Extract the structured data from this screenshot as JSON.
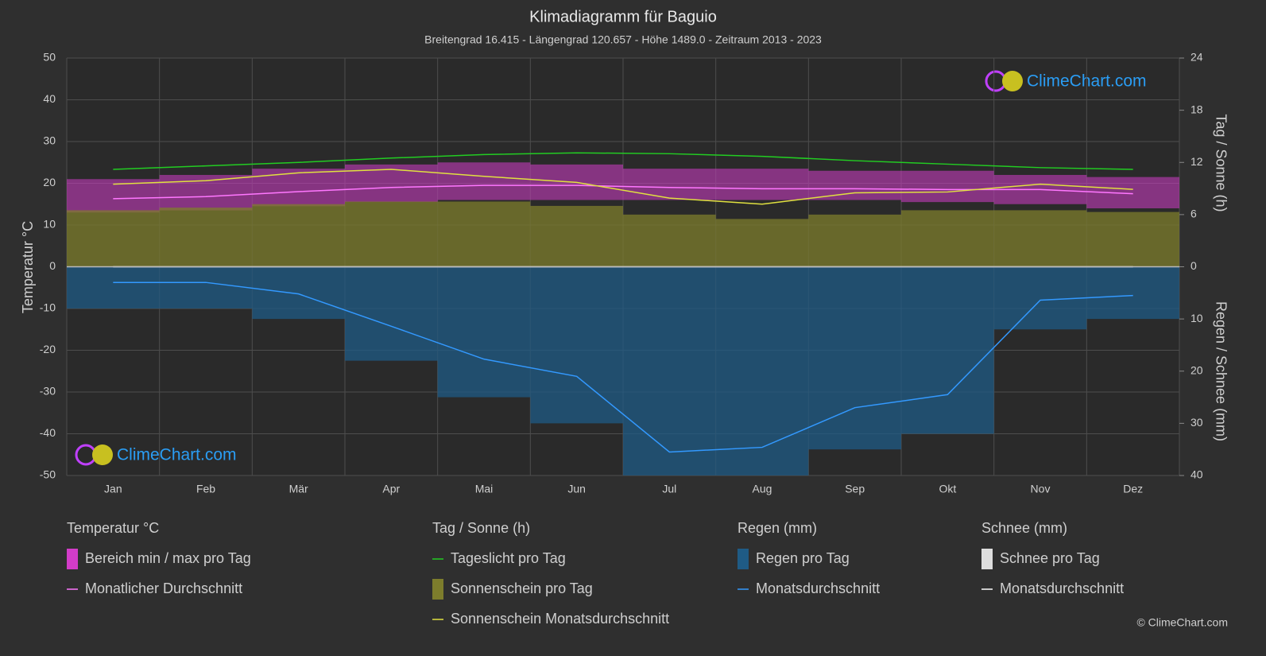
{
  "chart_data": {
    "type": "climate",
    "title": "Klimadiagramm für Baguio",
    "subtitle": "Breitengrad 16.415 - Längengrad 120.657 - Höhe 1489.0 - Zeitraum 2013 - 2023",
    "categories": [
      "Jan",
      "Feb",
      "Mär",
      "Apr",
      "Mai",
      "Jun",
      "Jul",
      "Aug",
      "Sep",
      "Okt",
      "Nov",
      "Dez"
    ],
    "ylabel": "Temperatur °C",
    "y2label": "Tag / Sonne (h)",
    "y3label": "Regen / Schnee (mm)",
    "ylim": [
      -50,
      50
    ],
    "yticks": [
      50,
      40,
      30,
      20,
      10,
      0,
      -10,
      -20,
      -30,
      -40,
      -50
    ],
    "y2lim": [
      0,
      24
    ],
    "y2ticks": [
      0,
      6,
      12,
      18,
      24
    ],
    "y3lim": [
      0,
      40
    ],
    "y3ticks": [
      10,
      20,
      30,
      40
    ],
    "grid": true,
    "groups": [
      {
        "title": "Temperatur °C",
        "series": [
          {
            "name": "Bereich min / max pro Tag",
            "kind": "band",
            "axis": "y",
            "color": "#d23cc8",
            "min": [
              13,
              13.5,
              14.5,
              15.5,
              16,
              16,
              16,
              16,
              16,
              15.5,
              15,
              14
            ],
            "max": [
              21,
              22,
              23.5,
              24.5,
              25,
              24.5,
              23.5,
              23.5,
              23,
              23,
              22,
              21.5
            ]
          },
          {
            "name": "Monatlicher Durchschnitt",
            "kind": "line",
            "axis": "y",
            "color": "#ff77ff",
            "values": [
              16.3,
              16.8,
              18.0,
              19.0,
              19.5,
              19.5,
              19.0,
              18.7,
              18.7,
              18.5,
              18.5,
              17.5
            ]
          }
        ]
      },
      {
        "title": "Tag / Sonne (h)",
        "series": [
          {
            "name": "Tageslicht pro Tag",
            "kind": "line",
            "axis": "y2",
            "color": "#22cc22",
            "values": [
              11.2,
              11.6,
              12.0,
              12.5,
              12.9,
              13.1,
              13.0,
              12.7,
              12.2,
              11.8,
              11.4,
              11.2
            ]
          },
          {
            "name": "Sonnenschein pro Tag",
            "kind": "area",
            "axis": "y2",
            "color": "#7d7d2c",
            "values": [
              6.5,
              6.8,
              7.2,
              7.5,
              7.5,
              7.0,
              6.0,
              5.5,
              6.0,
              6.5,
              6.5,
              6.3
            ]
          },
          {
            "name": "Sonnenschein Monatsdurchschnitt",
            "kind": "line",
            "axis": "y2",
            "color": "#e0e040",
            "values": [
              9.5,
              9.9,
              10.8,
              11.2,
              10.4,
              9.7,
              7.9,
              7.2,
              8.5,
              8.6,
              9.5,
              8.9
            ]
          }
        ]
      },
      {
        "title": "Regen (mm)",
        "series": [
          {
            "name": "Regen pro Tag",
            "kind": "area",
            "axis": "y3",
            "color": "#1f5b85",
            "values": [
              8,
              8,
              10,
              18,
              25,
              30,
              40,
              40,
              35,
              32,
              12,
              10
            ]
          },
          {
            "name": "Monatsdurchschnitt",
            "kind": "line",
            "axis": "y3",
            "color": "#3399ff",
            "values": [
              3.0,
              3.0,
              5.2,
              11.4,
              17.7,
              21.0,
              35.5,
              34.6,
              27.0,
              24.5,
              6.4,
              5.5
            ]
          }
        ]
      },
      {
        "title": "Schnee (mm)",
        "series": [
          {
            "name": "Schnee pro Tag",
            "kind": "area",
            "axis": "y3",
            "color": "#dddddd",
            "values": [
              0,
              0,
              0,
              0,
              0,
              0,
              0,
              0,
              0,
              0,
              0,
              0
            ]
          },
          {
            "name": "Monatsdurchschnitt",
            "kind": "line",
            "axis": "y3",
            "color": "#ffffff",
            "values": [
              0,
              0,
              0,
              0,
              0,
              0,
              0,
              0,
              0,
              0,
              0,
              0
            ]
          }
        ]
      }
    ],
    "logo": [
      "ClimeChart.com",
      "ClimeChart.com"
    ],
    "copyright": "© ClimeChart.com"
  }
}
